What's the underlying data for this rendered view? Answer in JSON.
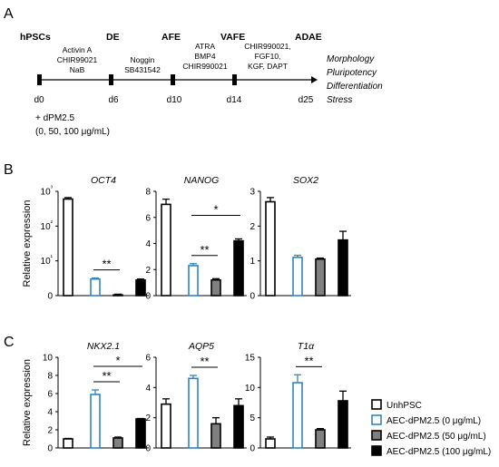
{
  "panels": [
    {
      "label": "A"
    },
    {
      "label": "B"
    },
    {
      "label": "C"
    }
  ],
  "timeline": {
    "stages": [
      "hPSCs",
      "DE",
      "AFE",
      "VAFE",
      "ADAE"
    ],
    "days": [
      "d0",
      "d6",
      "d10",
      "d14",
      "d25"
    ],
    "factors": [
      [
        "Activin A",
        "CHIR99021",
        "NaB"
      ],
      [
        "Noggin",
        "SB431542"
      ],
      [
        "ATRA",
        "BMP4",
        "CHIR990021"
      ],
      [
        "CHIR990021,",
        "FGF10,",
        "KGF, DAPT"
      ]
    ],
    "assays": [
      "Morphology",
      "Pluripotency",
      "Differentiation",
      "Stress"
    ],
    "treatment": [
      "+ dPM2.5",
      "(0, 50, 100 μg/mL)"
    ]
  },
  "legend": {
    "items": [
      {
        "label": "UnhPSC",
        "fill": "#ffffff",
        "stroke": "#000000"
      },
      {
        "label": "AEC-dPM2.5 (0 μg/mL)",
        "fill": "#ffffff",
        "stroke": "#2e86c8"
      },
      {
        "label": "AEC-dPM2.5 (50 μg/mL)",
        "fill": "#808080",
        "stroke": "#000000"
      },
      {
        "label": "AEC-dPM2.5 (100 μg/mL)",
        "fill": "#000000",
        "stroke": "#000000"
      }
    ]
  },
  "chart_data": [
    {
      "type": "bar",
      "title": "OCT4",
      "ylabel": "Relative expression",
      "yscale": "log",
      "categories": [
        "UnhPSC",
        "AEC-dPM2.5 (0 μg/mL)",
        "AEC-dPM2.5 (50 μg/mL)",
        "AEC-dPM2.5 (100 μg/mL)"
      ],
      "values": [
        600,
        3,
        1.05,
        2.8
      ],
      "errors": [
        60,
        0.2,
        0.05,
        0.2
      ],
      "yticks": [
        "0",
        "10¹",
        "10²",
        "10³"
      ],
      "ylim": [
        0,
        3
      ],
      "significance": [
        {
          "from": 1,
          "to": 2,
          "label": "**"
        }
      ]
    },
    {
      "type": "bar",
      "title": "NANOG",
      "ylabel": "",
      "ylim": [
        0,
        8
      ],
      "categories": [
        "UnhPSC",
        "AEC-dPM2.5 (0 μg/mL)",
        "AEC-dPM2.5 (50 μg/mL)",
        "AEC-dPM2.5 (100 μg/mL)"
      ],
      "values": [
        7.0,
        2.3,
        1.2,
        4.2
      ],
      "errors": [
        0.4,
        0.15,
        0.1,
        0.15
      ],
      "yticks": [
        "0",
        "2",
        "4",
        "6",
        "8"
      ],
      "significance": [
        {
          "from": 1,
          "to": 2,
          "label": "**"
        },
        {
          "from": 1,
          "to": 3,
          "label": "*"
        }
      ]
    },
    {
      "type": "bar",
      "title": "SOX2",
      "ylabel": "",
      "ylim": [
        0,
        3
      ],
      "categories": [
        "UnhPSC",
        "AEC-dPM2.5 (0 μg/mL)",
        "AEC-dPM2.5 (50 μg/mL)",
        "AEC-dPM2.5 (100 μg/mL)"
      ],
      "values": [
        2.7,
        1.1,
        1.05,
        1.6
      ],
      "errors": [
        0.12,
        0.06,
        0.03,
        0.25
      ],
      "yticks": [
        "0",
        "1",
        "2",
        "3"
      ],
      "significance": []
    },
    {
      "type": "bar",
      "title": "NKX2.1",
      "ylabel": "Relative expression",
      "ylim": [
        0,
        10
      ],
      "categories": [
        "UnhPSC",
        "AEC-dPM2.5 (0 μg/mL)",
        "AEC-dPM2.5 (50 μg/mL)",
        "AEC-dPM2.5 (100 μg/mL)"
      ],
      "values": [
        1.0,
        5.9,
        1.1,
        3.2
      ],
      "errors": [
        0.05,
        0.5,
        0.1,
        0.05
      ],
      "yticks": [
        "0",
        "2",
        "4",
        "6",
        "8",
        "10"
      ],
      "significance": [
        {
          "from": 1,
          "to": 2,
          "label": "**"
        },
        {
          "from": 1,
          "to": 3,
          "label": "*"
        }
      ]
    },
    {
      "type": "bar",
      "title": "AQP5",
      "ylabel": "",
      "ylim": [
        0,
        6
      ],
      "categories": [
        "UnhPSC",
        "AEC-dPM2.5 (0 μg/mL)",
        "AEC-dPM2.5 (50 μg/mL)",
        "AEC-dPM2.5 (100 μg/mL)"
      ],
      "values": [
        2.9,
        4.6,
        1.6,
        2.8
      ],
      "errors": [
        0.35,
        0.2,
        0.4,
        0.45
      ],
      "yticks": [
        "0",
        "2",
        "4",
        "6"
      ],
      "significance": [
        {
          "from": 1,
          "to": 2,
          "label": "**"
        }
      ]
    },
    {
      "type": "bar",
      "title": "T1α",
      "ylabel": "",
      "ylim": [
        0,
        15
      ],
      "categories": [
        "UnhPSC",
        "AEC-dPM2.5 (0 μg/mL)",
        "AEC-dPM2.5 (50 μg/mL)",
        "AEC-dPM2.5 (100 μg/mL)"
      ],
      "values": [
        1.5,
        10.8,
        3.0,
        7.8
      ],
      "errors": [
        0.3,
        1.3,
        0.2,
        1.6
      ],
      "yticks": [
        "0",
        "5",
        "10",
        "15"
      ],
      "significance": [
        {
          "from": 1,
          "to": 2,
          "label": "**"
        }
      ]
    }
  ]
}
